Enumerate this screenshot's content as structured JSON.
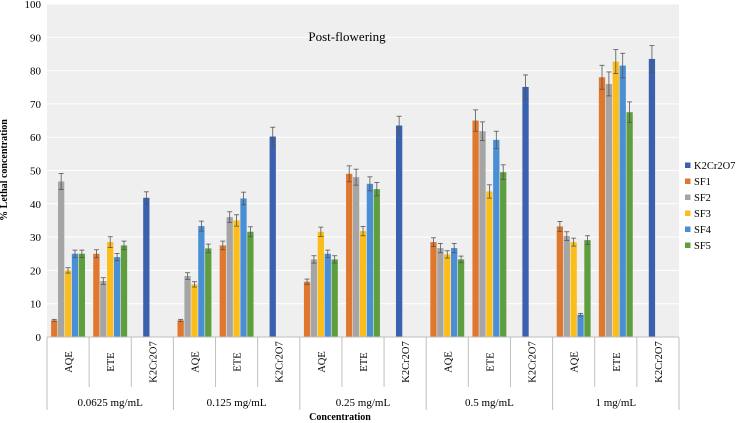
{
  "chart_data": {
    "type": "bar",
    "title": "Post-flowering",
    "xlabel": "Concentration",
    "ylabel": "% Lethal concentration",
    "ylim": [
      0,
      100
    ],
    "yticks": [
      0,
      10,
      20,
      30,
      40,
      50,
      60,
      70,
      80,
      90,
      100
    ],
    "groups": [
      "0.0625 mg/mL",
      "0.125 mg/mL",
      "0.25 mg/mL",
      "0.5 mg/mL",
      "1 mg/mL"
    ],
    "subcategories": [
      "AQE",
      "ETE",
      "K2Cr2O7"
    ],
    "legend_position": "right",
    "series": [
      {
        "name": "K2Cr2O7",
        "color": "#3a61b0",
        "values": [
          [
            null,
            null,
            41.8
          ],
          [
            null,
            null,
            60.2
          ],
          [
            null,
            null,
            63.5
          ],
          [
            null,
            null,
            75.1
          ],
          [
            null,
            null,
            83.5
          ]
        ],
        "errors": [
          [
            null,
            null,
            1.8
          ],
          [
            null,
            null,
            2.8
          ],
          [
            null,
            null,
            2.8
          ],
          [
            null,
            null,
            3.6
          ],
          [
            null,
            null,
            4.0
          ]
        ]
      },
      {
        "name": "SF1",
        "color": "#e0772e",
        "values": [
          [
            5.0,
            25.0,
            null
          ],
          [
            5.0,
            27.5,
            null
          ],
          [
            16.6,
            49.0,
            null
          ],
          [
            28.5,
            65.0,
            null
          ],
          [
            33.2,
            78.0,
            null
          ]
        ],
        "errors": [
          [
            0.3,
            1.2,
            null
          ],
          [
            0.3,
            1.3,
            null
          ],
          [
            0.8,
            2.4,
            null
          ],
          [
            1.3,
            3.2,
            null
          ],
          [
            1.5,
            3.6,
            null
          ]
        ]
      },
      {
        "name": "SF2",
        "color": "#a5a5a5",
        "values": [
          [
            46.7,
            16.8,
            null
          ],
          [
            18.3,
            36.0,
            null
          ],
          [
            23.3,
            48.0,
            null
          ],
          [
            26.7,
            61.8,
            null
          ],
          [
            30.3,
            76.0,
            null
          ]
        ],
        "errors": [
          [
            2.4,
            1.0,
            null
          ],
          [
            1.0,
            1.6,
            null
          ],
          [
            1.1,
            2.4,
            null
          ],
          [
            1.4,
            2.8,
            null
          ],
          [
            1.3,
            3.6,
            null
          ]
        ]
      },
      {
        "name": "SF3",
        "color": "#fbbd1a",
        "values": [
          [
            20.0,
            28.5,
            null
          ],
          [
            15.8,
            35.0,
            null
          ],
          [
            31.6,
            31.8,
            null
          ],
          [
            24.8,
            43.7,
            null
          ],
          [
            28.5,
            82.7,
            null
          ]
        ],
        "errors": [
          [
            0.8,
            1.6,
            null
          ],
          [
            0.8,
            1.7,
            null
          ],
          [
            1.4,
            1.4,
            null
          ],
          [
            1.1,
            2.0,
            null
          ],
          [
            1.2,
            3.6,
            null
          ]
        ]
      },
      {
        "name": "SF4",
        "color": "#4a8ed5",
        "values": [
          [
            25.0,
            24.0,
            null
          ],
          [
            33.3,
            41.6,
            null
          ],
          [
            25.0,
            46.0,
            null
          ],
          [
            26.7,
            59.2,
            null
          ],
          [
            6.7,
            81.5,
            null
          ]
        ],
        "errors": [
          [
            1.1,
            1.1,
            null
          ],
          [
            1.5,
            1.9,
            null
          ],
          [
            1.1,
            2.1,
            null
          ],
          [
            1.4,
            2.6,
            null
          ],
          [
            0.4,
            3.7,
            null
          ]
        ]
      },
      {
        "name": "SF5",
        "color": "#5f9e3e",
        "values": [
          [
            25.0,
            27.5,
            null
          ],
          [
            26.6,
            31.6,
            null
          ],
          [
            23.3,
            44.4,
            null
          ],
          [
            23.3,
            49.5,
            null
          ],
          [
            29.1,
            67.5,
            null
          ]
        ],
        "errors": [
          [
            1.1,
            1.3,
            null
          ],
          [
            1.3,
            1.5,
            null
          ],
          [
            1.1,
            2.0,
            null
          ],
          [
            1.0,
            2.2,
            null
          ],
          [
            1.3,
            3.1,
            null
          ]
        ]
      }
    ]
  }
}
